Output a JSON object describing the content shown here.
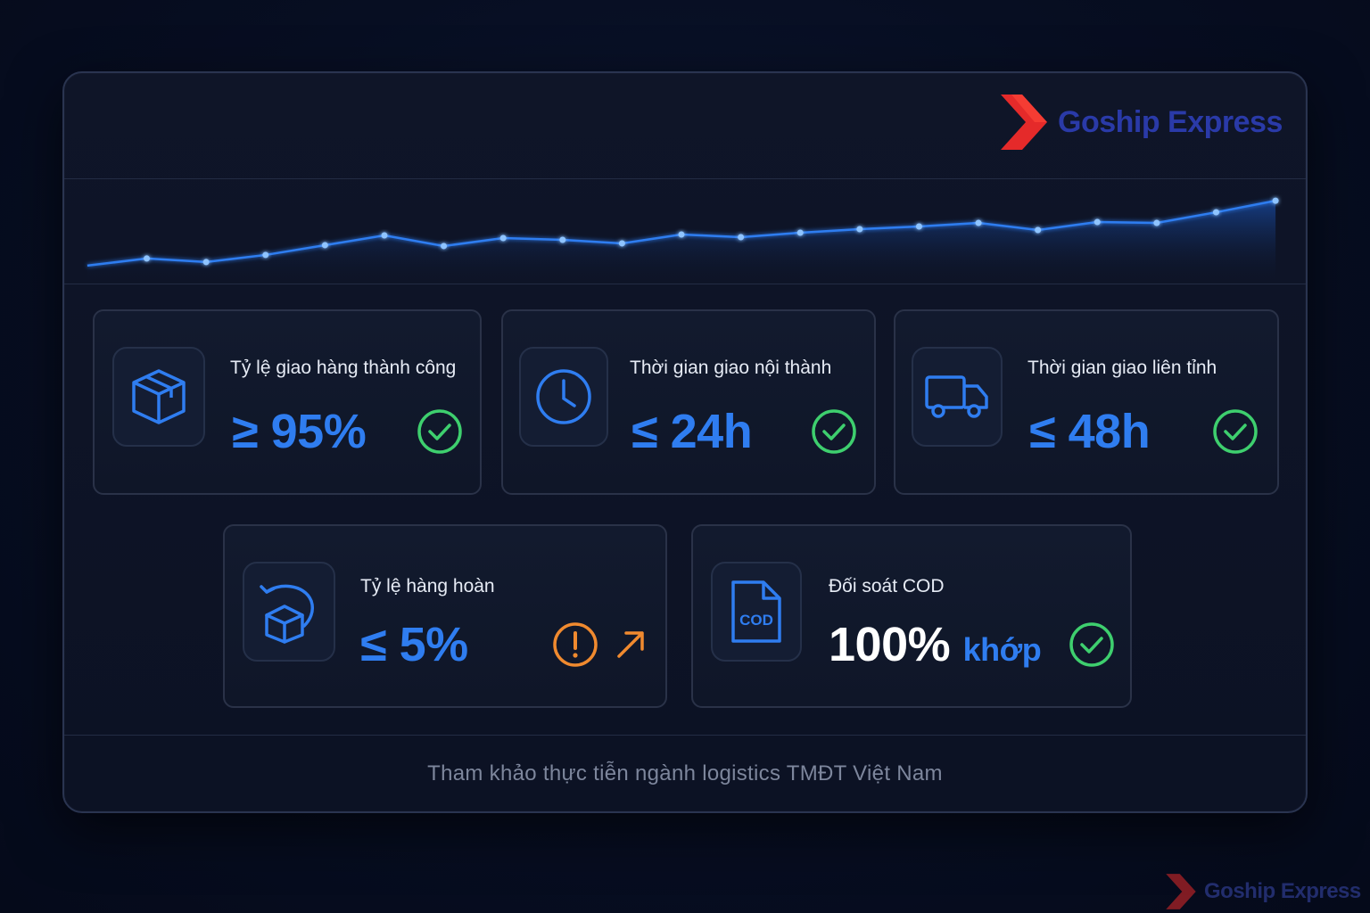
{
  "brand": {
    "name": "Goship Express"
  },
  "chart_data": {
    "type": "line",
    "values": [
      12,
      20,
      16,
      24,
      35,
      46,
      34,
      43,
      41,
      37,
      47,
      44,
      49,
      53,
      56,
      60,
      52,
      61,
      60,
      72,
      85
    ]
  },
  "metrics": [
    {
      "label": "Tỷ lệ giao hàng thành công",
      "value": "≥ 95%",
      "icon": "package-icon",
      "status": "check-icon"
    },
    {
      "label": "Thời gian giao nội thành",
      "value": "≤ 24h",
      "icon": "clock-icon",
      "status": "check-icon"
    },
    {
      "label": "Thời gian giao liên tỉnh",
      "value": "≤ 48h",
      "icon": "truck-icon",
      "status": "check-icon"
    },
    {
      "label": "Tỷ lệ hàng hoàn",
      "value": "≤ 5%",
      "icon": "return-box-icon",
      "status": "warning-icon"
    },
    {
      "label": "Đối soát COD",
      "value_main": "100%",
      "value_suffix": "khớp",
      "icon": "cod-document-icon",
      "icon_text": "COD",
      "status": "check-icon"
    }
  ],
  "footer": {
    "note": "Tham khảo thực tiễn ngành logistics TMĐT Việt Nam"
  },
  "colors": {
    "accent": "#2f7df0",
    "success": "#3ecf6e",
    "warning": "#f08a2f",
    "brand_red": "#e52a2a",
    "brand_blue": "#2a3aa8"
  }
}
